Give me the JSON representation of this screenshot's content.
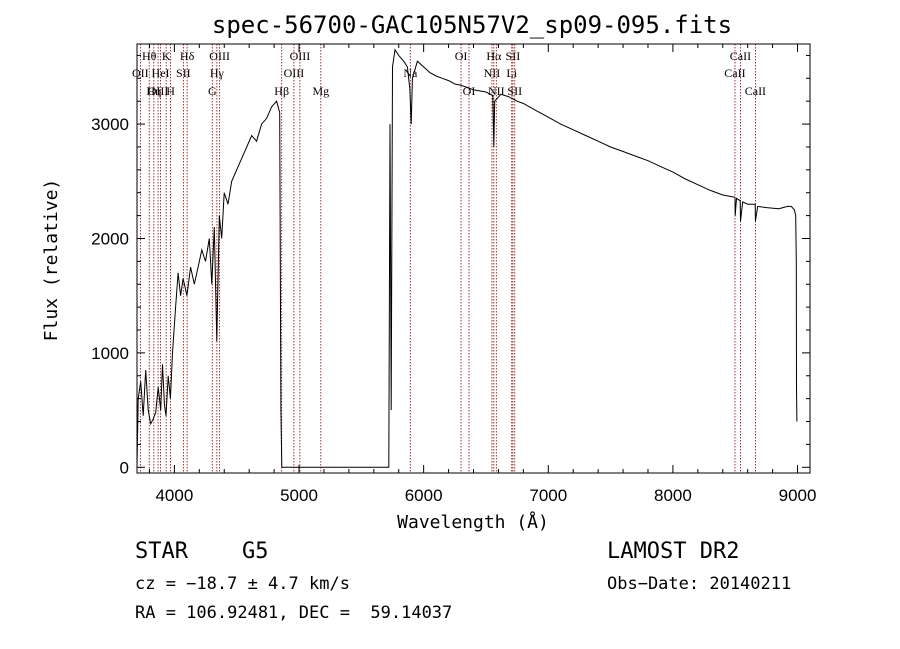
{
  "chart_data": {
    "type": "line",
    "title": "spec-56700-GAC105N57V2_sp09-095.fits",
    "xlabel": "Wavelength (Å)",
    "ylabel": "Flux (relative)",
    "xlim": [
      3700,
      9100
    ],
    "ylim": [
      -50,
      3700
    ],
    "xticks": [
      4000,
      5000,
      6000,
      7000,
      8000,
      9000
    ],
    "yticks": [
      0,
      1000,
      2000,
      3000
    ],
    "xtick_labels": [
      "4000",
      "5000",
      "6000",
      "7000",
      "8000",
      "9000"
    ],
    "ytick_labels": [
      "0",
      "1000",
      "2000",
      "3000"
    ],
    "grid": false,
    "line_color": "#000000",
    "marker_color": "#8b0000",
    "series": [
      {
        "values": [
          [
            3700,
            0
          ],
          [
            3710,
            600
          ],
          [
            3730,
            750
          ],
          [
            3750,
            450
          ],
          [
            3770,
            850
          ],
          [
            3790,
            500
          ],
          [
            3810,
            380
          ],
          [
            3830,
            420
          ],
          [
            3850,
            480
          ],
          [
            3870,
            700
          ],
          [
            3890,
            500
          ],
          [
            3905,
            900
          ],
          [
            3920,
            550
          ],
          [
            3933,
            450
          ],
          [
            3950,
            800
          ],
          [
            3968,
            600
          ],
          [
            3985,
            1000
          ],
          [
            4010,
            1400
          ],
          [
            4030,
            1700
          ],
          [
            4050,
            1500
          ],
          [
            4070,
            1650
          ],
          [
            4100,
            1500
          ],
          [
            4130,
            1750
          ],
          [
            4160,
            1600
          ],
          [
            4190,
            1750
          ],
          [
            4220,
            1900
          ],
          [
            4250,
            1800
          ],
          [
            4280,
            2000
          ],
          [
            4300,
            1600
          ],
          [
            4320,
            2100
          ],
          [
            4340,
            1100
          ],
          [
            4360,
            2200
          ],
          [
            4380,
            2000
          ],
          [
            4400,
            2400
          ],
          [
            4430,
            2300
          ],
          [
            4460,
            2500
          ],
          [
            4500,
            2600
          ],
          [
            4540,
            2700
          ],
          [
            4580,
            2800
          ],
          [
            4620,
            2900
          ],
          [
            4660,
            2850
          ],
          [
            4700,
            3000
          ],
          [
            4740,
            3050
          ],
          [
            4780,
            3150
          ],
          [
            4820,
            3200
          ],
          [
            4845,
            3100
          ],
          [
            4855,
            500
          ],
          [
            4862,
            0
          ],
          [
            5720,
            0
          ],
          [
            5730,
            3000
          ],
          [
            5740,
            500
          ],
          [
            5750,
            3500
          ],
          [
            5770,
            3650
          ],
          [
            5800,
            3600
          ],
          [
            5840,
            3550
          ],
          [
            5870,
            3500
          ],
          [
            5890,
            3300
          ],
          [
            5900,
            3000
          ],
          [
            5910,
            3400
          ],
          [
            5950,
            3550
          ],
          [
            6000,
            3500
          ],
          [
            6050,
            3450
          ],
          [
            6100,
            3420
          ],
          [
            6150,
            3400
          ],
          [
            6200,
            3380
          ],
          [
            6250,
            3350
          ],
          [
            6300,
            3340
          ],
          [
            6350,
            3320
          ],
          [
            6400,
            3300
          ],
          [
            6450,
            3290
          ],
          [
            6500,
            3280
          ],
          [
            6555,
            3250
          ],
          [
            6563,
            2800
          ],
          [
            6570,
            3200
          ],
          [
            6620,
            3260
          ],
          [
            6680,
            3240
          ],
          [
            6750,
            3200
          ],
          [
            6800,
            3180
          ],
          [
            6900,
            3120
          ],
          [
            7000,
            3060
          ],
          [
            7100,
            3000
          ],
          [
            7200,
            2950
          ],
          [
            7300,
            2900
          ],
          [
            7400,
            2850
          ],
          [
            7500,
            2800
          ],
          [
            7600,
            2760
          ],
          [
            7700,
            2720
          ],
          [
            7800,
            2680
          ],
          [
            7900,
            2630
          ],
          [
            8000,
            2580
          ],
          [
            8100,
            2520
          ],
          [
            8200,
            2470
          ],
          [
            8300,
            2420
          ],
          [
            8400,
            2380
          ],
          [
            8498,
            2360
          ],
          [
            8500,
            2200
          ],
          [
            8510,
            2350
          ],
          [
            8540,
            2330
          ],
          [
            8542,
            2150
          ],
          [
            8560,
            2320
          ],
          [
            8600,
            2300
          ],
          [
            8660,
            2300
          ],
          [
            8662,
            2150
          ],
          [
            8680,
            2280
          ],
          [
            8750,
            2270
          ],
          [
            8850,
            2260
          ],
          [
            8920,
            2280
          ],
          [
            8950,
            2280
          ],
          [
            8975,
            2250
          ],
          [
            8985,
            2200
          ],
          [
            8990,
            1800
          ],
          [
            8992,
            700
          ],
          [
            8995,
            400
          ]
        ]
      }
    ],
    "line_markers": [
      {
        "wavelength": 3727,
        "labels": [
          "OII"
        ],
        "rows": [
          1
        ]
      },
      {
        "wavelength": 3798,
        "labels": [
          "Hθ"
        ],
        "rows": [
          0
        ]
      },
      {
        "wavelength": 3835,
        "labels": [
          "Hη"
        ],
        "rows": [
          2
        ]
      },
      {
        "wavelength": 3869,
        "labels": [
          "OIII"
        ],
        "rows": [
          2
        ]
      },
      {
        "wavelength": 3889,
        "labels": [
          "HeI"
        ],
        "rows": [
          1
        ]
      },
      {
        "wavelength": 3934,
        "labels": [
          "K"
        ],
        "rows": [
          0
        ]
      },
      {
        "wavelength": 3969,
        "labels": [
          "H"
        ],
        "rows": [
          2
        ]
      },
      {
        "wavelength": 4072,
        "labels": [
          "SII"
        ],
        "rows": [
          1
        ]
      },
      {
        "wavelength": 4102,
        "labels": [
          "Hδ"
        ],
        "rows": [
          0
        ]
      },
      {
        "wavelength": 4304,
        "labels": [
          "G"
        ],
        "rows": [
          2
        ]
      },
      {
        "wavelength": 4341,
        "labels": [
          "Hγ"
        ],
        "rows": [
          1
        ]
      },
      {
        "wavelength": 4363,
        "labels": [
          "OIII"
        ],
        "rows": [
          0
        ]
      },
      {
        "wavelength": 4861,
        "labels": [
          "Hβ"
        ],
        "rows": [
          2
        ]
      },
      {
        "wavelength": 4959,
        "labels": [
          "OIII"
        ],
        "rows": [
          1
        ]
      },
      {
        "wavelength": 5007,
        "labels": [
          "OIII"
        ],
        "rows": [
          0
        ]
      },
      {
        "wavelength": 5175,
        "labels": [
          "Mg"
        ],
        "rows": [
          2
        ]
      },
      {
        "wavelength": 5893,
        "labels": [
          "Na"
        ],
        "rows": [
          1
        ]
      },
      {
        "wavelength": 6300,
        "labels": [
          "OI"
        ],
        "rows": [
          0
        ]
      },
      {
        "wavelength": 6364,
        "labels": [
          "OI"
        ],
        "rows": [
          2
        ]
      },
      {
        "wavelength": 6548,
        "labels": [
          "NII"
        ],
        "rows": [
          1
        ]
      },
      {
        "wavelength": 6563,
        "labels": [
          "Hα"
        ],
        "rows": [
          0
        ]
      },
      {
        "wavelength": 6583,
        "labels": [
          "NII"
        ],
        "rows": [
          2
        ]
      },
      {
        "wavelength": 6707,
        "labels": [
          "Li"
        ],
        "rows": [
          1
        ]
      },
      {
        "wavelength": 6716,
        "labels": [
          "SII"
        ],
        "rows": [
          0
        ]
      },
      {
        "wavelength": 6731,
        "labels": [
          "SII"
        ],
        "rows": [
          2
        ]
      },
      {
        "wavelength": 8498,
        "labels": [
          "CaII"
        ],
        "rows": [
          1
        ]
      },
      {
        "wavelength": 8542,
        "labels": [
          "CaII"
        ],
        "rows": [
          0
        ]
      },
      {
        "wavelength": 8662,
        "labels": [
          "CaII"
        ],
        "rows": [
          2
        ]
      }
    ]
  },
  "info": {
    "class": "STAR",
    "subclass": "G5",
    "survey": "LAMOST DR2",
    "cz": "cz = −18.7 ± 4.7 km/s",
    "obs_date": "Obs−Date: 20140211",
    "radec": "RA = 106.92481, DEC =  59.14037"
  }
}
